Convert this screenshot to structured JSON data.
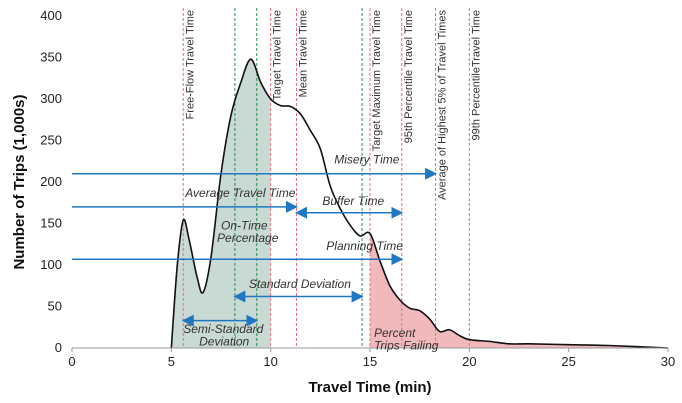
{
  "chart_data": {
    "type": "area",
    "xlabel": "Travel Time (min)",
    "ylabel": "Number of Trips (1,000s)",
    "xlim": [
      0,
      30
    ],
    "ylim": [
      0,
      400
    ],
    "xticks": [
      0,
      5,
      10,
      15,
      20,
      25,
      30
    ],
    "yticks": [
      0,
      50,
      100,
      150,
      200,
      250,
      300,
      350,
      400
    ],
    "grid": false,
    "curve": {
      "x": [
        5,
        5.3,
        5.6,
        5.9,
        6.3,
        6.6,
        7,
        7.5,
        8,
        8.5,
        9,
        9.5,
        10,
        10.5,
        11,
        11.5,
        12,
        12.5,
        13,
        13.5,
        14,
        14.5,
        15,
        15.5,
        16,
        16.5,
        17,
        17.5,
        18,
        18.5,
        19,
        19.5,
        20,
        21,
        22,
        23,
        25,
        27,
        30
      ],
      "y": [
        0,
        100,
        154,
        130,
        85,
        67,
        110,
        210,
        280,
        320,
        348,
        320,
        300,
        292,
        291,
        282,
        262,
        240,
        195,
        168,
        148,
        135,
        138,
        105,
        75,
        58,
        48,
        45,
        35,
        20,
        22,
        15,
        10,
        8,
        5,
        5,
        4,
        3,
        0
      ]
    },
    "shaded_regions": [
      {
        "label": "On-Time Percentage",
        "from": 5,
        "to": 10,
        "color": "#c9d9d3"
      },
      {
        "label": "Percent Trips Failing",
        "from": 15,
        "to": 30,
        "color": "#f2b9bd"
      }
    ],
    "reference_lines": [
      {
        "x": 5.6,
        "label": "Free-Flow Travel Time",
        "color": "#e07080"
      },
      {
        "x": 8.2,
        "label": "",
        "color": "#2e8b57"
      },
      {
        "x": 9.3,
        "label": "",
        "color": "#2e8b57"
      },
      {
        "x": 10,
        "label": "Target Travel Time",
        "color": "#e07080"
      },
      {
        "x": 11.3,
        "label": "Mean Travel Time",
        "color": "#e07080"
      },
      {
        "x": 14.6,
        "label": "",
        "color": "#2e8b57"
      },
      {
        "x": 15,
        "label": "Target  Maximum Travel Time",
        "color": "#e07080"
      },
      {
        "x": 16.6,
        "label": "95th Percentile Travel Time",
        "color": "#e07080"
      },
      {
        "x": 18.3,
        "label": "Average of Highest 5% of Travel Times",
        "color": "#e07080"
      },
      {
        "x": 20,
        "label": "99th PercentileTravel Time",
        "color": "#e07080"
      }
    ],
    "arrows": [
      {
        "label": "Misery Time",
        "from": 0,
        "to": 18.3,
        "y": 210,
        "double": false,
        "lx": 13.2,
        "ly": 222
      },
      {
        "label": "Average Travel Time",
        "from": 0,
        "to": 11.3,
        "y": 170,
        "double": false,
        "lx": 5.7,
        "ly": 182
      },
      {
        "label": "Buffer Time",
        "from": 11.3,
        "to": 16.6,
        "y": 163,
        "double": true,
        "lx": 12.6,
        "ly": 172
      },
      {
        "label": "Planning Time",
        "from": 0,
        "to": 16.6,
        "y": 107,
        "double": false,
        "lx": 12.8,
        "ly": 118
      },
      {
        "label": "Standard Deviation",
        "from": 8.2,
        "to": 14.6,
        "y": 62,
        "double": true,
        "lx": 8.9,
        "ly": 72
      },
      {
        "label": "Semi-Standard",
        "from": 5.6,
        "to": 9.3,
        "y": 33,
        "double": true,
        "lx": 5.6,
        "ly": 18
      },
      {
        "label": "Deviation",
        "from": null,
        "to": null,
        "y": null,
        "double": false,
        "lx": 6.4,
        "ly": 3
      }
    ],
    "annotations": [
      {
        "text": "On-Time",
        "x": 7.5,
        "y": 143
      },
      {
        "text": "Percentage",
        "x": 7.3,
        "y": 128
      },
      {
        "text": "Percent",
        "x": 15.2,
        "y": 13
      },
      {
        "text": "Trips Failing",
        "x": 15.2,
        "y": -2
      }
    ]
  }
}
